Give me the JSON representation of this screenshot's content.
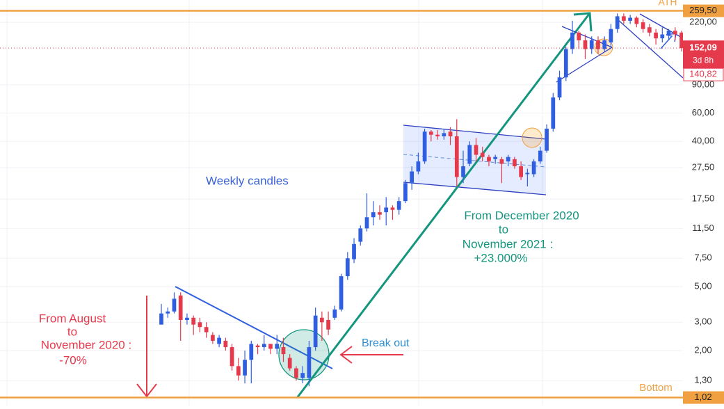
{
  "chart_data": {
    "type": "candlestick",
    "log_scale": true,
    "ylim": [
      0.91,
      303
    ],
    "yticks": [
      {
        "value": 1.3,
        "label": "1,30"
      },
      {
        "value": 2,
        "label": "2,00"
      },
      {
        "value": 3,
        "label": "3,00"
      },
      {
        "value": 5,
        "label": "5,00"
      },
      {
        "value": 7.5,
        "label": "7,50"
      },
      {
        "value": 11.5,
        "label": "11,50"
      },
      {
        "value": 17.5,
        "label": "17,50"
      },
      {
        "value": 27.5,
        "label": "27,50"
      },
      {
        "value": 40,
        "label": "40,00"
      },
      {
        "value": 60,
        "label": "60,00"
      },
      {
        "value": 90,
        "label": "90,00"
      },
      {
        "value": 220,
        "label": "220,00"
      }
    ],
    "grid": true,
    "up_color": "#2f5fe0",
    "down_color": "#e5394c",
    "open": [
      2.9,
      3.4,
      3.5,
      4.4,
      3.1,
      3.2,
      3.0,
      2.8,
      2.5,
      2.2,
      2.3,
      2.1,
      1.6,
      1.4,
      1.75,
      2.15,
      2.1,
      2.2,
      2.05,
      2.1,
      1.8,
      1.55,
      1.35,
      1.35,
      2.1,
      3.2,
      3.1,
      3.2,
      3.6,
      5.8,
      7.4,
      9.5,
      11.5,
      13.5,
      14.5,
      14.5,
      15.5,
      15,
      17,
      22,
      26,
      30,
      46,
      44,
      43,
      46,
      43,
      24,
      29,
      38,
      34,
      32,
      31,
      31,
      30,
      31,
      28,
      25,
      25,
      30,
      35,
      48,
      75,
      100,
      150,
      190,
      170,
      150,
      170,
      150,
      165,
      200,
      240,
      225,
      235,
      220,
      205,
      190,
      175,
      185,
      195,
      190
    ],
    "high": [
      3.9,
      3.7,
      4.6,
      4.6,
      3.4,
      3.3,
      3.2,
      3.0,
      2.6,
      2.5,
      2.4,
      2.2,
      1.8,
      2.0,
      2.3,
      2.2,
      2.5,
      2.2,
      2.5,
      2.4,
      1.9,
      1.6,
      1.6,
      2.3,
      3.7,
      3.5,
      3.5,
      3.8,
      6.0,
      8.2,
      10,
      12,
      19,
      17,
      16,
      18,
      16,
      18,
      23,
      28,
      34,
      48,
      47,
      47,
      48,
      49,
      55,
      35,
      40,
      42,
      37,
      33,
      33,
      32,
      33,
      32,
      30,
      27,
      31,
      37,
      51,
      80,
      110,
      155,
      225,
      195,
      185,
      180,
      180,
      180,
      215,
      250,
      250,
      245,
      240,
      230,
      215,
      200,
      205,
      200,
      205,
      195
    ],
    "low": [
      2.9,
      3.2,
      3.4,
      2.3,
      2.9,
      2.5,
      2.6,
      2.4,
      2.2,
      2.1,
      2.0,
      1.5,
      1.3,
      1.25,
      1.25,
      1.9,
      2.0,
      1.9,
      1.9,
      1.7,
      1.5,
      1.3,
      1.25,
      1.2,
      2.0,
      2.3,
      2.5,
      3.1,
      3.5,
      5.5,
      7,
      9,
      11,
      12,
      13,
      12,
      13,
      14,
      16.5,
      20,
      25,
      29,
      40,
      41,
      41,
      38,
      21,
      22,
      28,
      30,
      30,
      28,
      29,
      22,
      28,
      27,
      23,
      21,
      24,
      29,
      34,
      46,
      72,
      95,
      140,
      150,
      130,
      140,
      140,
      145,
      150,
      190,
      215,
      215,
      205,
      190,
      180,
      160,
      165,
      170,
      170,
      145
    ],
    "close": [
      3.4,
      3.5,
      4.2,
      3.1,
      3.2,
      2.9,
      2.8,
      2.6,
      2.3,
      2.4,
      2.1,
      1.6,
      1.4,
      1.75,
      2.2,
      2.1,
      2.2,
      2.05,
      2.2,
      1.9,
      1.55,
      1.35,
      1.45,
      2.1,
      3.3,
      3.0,
      2.7,
      3.6,
      5.8,
      7.5,
      9.2,
      11.5,
      13.5,
      14.5,
      14,
      15.5,
      15,
      17,
      22,
      26,
      30,
      46,
      44,
      43,
      45,
      43,
      24,
      28,
      38,
      33,
      32,
      30,
      32,
      29,
      32,
      28,
      24,
      25.5,
      30,
      35,
      48,
      75,
      100,
      150,
      190,
      170,
      150,
      170,
      150,
      170,
      200,
      240,
      225,
      235,
      215,
      200,
      190,
      175,
      185,
      195,
      185,
      152.09
    ],
    "price_labels": [
      {
        "value": 259.5,
        "label": "259,50"
      },
      {
        "value": 152.09,
        "label": "152,09"
      },
      {
        "value": 140.82,
        "label": "140,82"
      },
      {
        "value": 1.02,
        "label": "1,02"
      }
    ],
    "countdown": "3d 8h",
    "annotations": [
      "ATH",
      "Bottom",
      "Weekly candles",
      "From August",
      "to",
      "November 2020 :",
      "-70%",
      "From December 2020",
      "to",
      "November 2021 :",
      "+23.000%",
      "Break out"
    ]
  }
}
